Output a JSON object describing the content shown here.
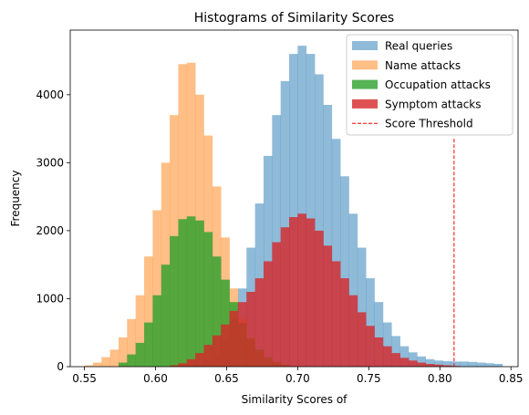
{
  "chart_data": {
    "type": "histogram",
    "title": "Histograms of Similarity Scores",
    "xlabel": "Similarity Scores of",
    "ylabel": "Frequency",
    "xlim": [
      0.54,
      0.855
    ],
    "ylim": [
      0,
      4950
    ],
    "xticks": [
      0.55,
      0.6,
      0.65,
      0.7,
      0.75,
      0.8,
      0.85
    ],
    "xtick_labels": [
      "0.55",
      "0.60",
      "0.65",
      "0.70",
      "0.75",
      "0.80",
      "0.85"
    ],
    "yticks": [
      0,
      1000,
      2000,
      3000,
      4000
    ],
    "ytick_labels": [
      "0",
      "1000",
      "2000",
      "3000",
      "4000"
    ],
    "legend_position": "upper right",
    "grid": false,
    "series": [
      {
        "name": "Real queries",
        "color": "#1f77b4",
        "alpha": 0.5,
        "bins": [
          0.55,
          0.556,
          0.562,
          0.568,
          0.574,
          0.58,
          0.586,
          0.592,
          0.598,
          0.604,
          0.61,
          0.616,
          0.622,
          0.628,
          0.634,
          0.64,
          0.646,
          0.652,
          0.658,
          0.664,
          0.67,
          0.676,
          0.682,
          0.688,
          0.694,
          0.7,
          0.706,
          0.712,
          0.718,
          0.724,
          0.73,
          0.736,
          0.742,
          0.748,
          0.754,
          0.76,
          0.766,
          0.772,
          0.778,
          0.784,
          0.79,
          0.796,
          0.802,
          0.808,
          0.814,
          0.82,
          0.826,
          0.832,
          0.838,
          0.844
        ],
        "counts": [
          0,
          0,
          0,
          0,
          0,
          0,
          0,
          0,
          0,
          0,
          2,
          6,
          15,
          40,
          90,
          190,
          380,
          700,
          1150,
          1750,
          2400,
          3100,
          3700,
          4200,
          4600,
          4720,
          4600,
          4300,
          3850,
          3350,
          2800,
          2250,
          1750,
          1300,
          950,
          650,
          450,
          300,
          210,
          150,
          110,
          90,
          80,
          75,
          75,
          70,
          60,
          50,
          40,
          0
        ]
      },
      {
        "name": "Name attacks",
        "color": "#ff7f0e",
        "alpha": 0.5,
        "bins": [
          0.55,
          0.556,
          0.562,
          0.568,
          0.574,
          0.58,
          0.586,
          0.592,
          0.598,
          0.604,
          0.61,
          0.616,
          0.622,
          0.628,
          0.634,
          0.64,
          0.646,
          0.652,
          0.658,
          0.664,
          0.67,
          0.676,
          0.682,
          0.688,
          0.694
        ],
        "counts": [
          20,
          60,
          140,
          250,
          430,
          700,
          1050,
          1620,
          2300,
          3000,
          3700,
          4450,
          4470,
          4000,
          3400,
          2650,
          1900,
          1150,
          700,
          420,
          220,
          110,
          50,
          20,
          0
        ]
      },
      {
        "name": "Occupation attacks",
        "color": "#2ca02c",
        "alpha": 0.8,
        "bins": [
          0.574,
          0.58,
          0.586,
          0.592,
          0.598,
          0.604,
          0.61,
          0.616,
          0.622,
          0.628,
          0.634,
          0.64,
          0.646,
          0.652,
          0.658,
          0.664,
          0.67,
          0.676,
          0.682,
          0.688,
          0.694
        ],
        "counts": [
          60,
          180,
          350,
          650,
          1050,
          1500,
          1920,
          2170,
          2210,
          2150,
          1980,
          1620,
          1280,
          950,
          640,
          420,
          250,
          140,
          70,
          30,
          0
        ]
      },
      {
        "name": "Symptom attacks",
        "color": "#d62728",
        "alpha": 0.8,
        "bins": [
          0.61,
          0.616,
          0.622,
          0.628,
          0.634,
          0.64,
          0.646,
          0.652,
          0.658,
          0.664,
          0.67,
          0.676,
          0.682,
          0.688,
          0.694,
          0.7,
          0.706,
          0.712,
          0.718,
          0.724,
          0.73,
          0.736,
          0.742,
          0.748,
          0.754,
          0.76,
          0.766,
          0.772,
          0.778,
          0.784,
          0.79,
          0.796,
          0.802,
          0.808,
          0.814
        ],
        "counts": [
          20,
          50,
          110,
          200,
          320,
          460,
          620,
          820,
          950,
          1100,
          1300,
          1550,
          1830,
          2050,
          2200,
          2250,
          2180,
          2000,
          1780,
          1550,
          1300,
          1050,
          800,
          600,
          430,
          300,
          200,
          130,
          90,
          60,
          40,
          30,
          20,
          10,
          0
        ]
      }
    ],
    "threshold": {
      "name": "Score Threshold",
      "x": 0.81,
      "color": "#ff0000",
      "style": "dashed"
    }
  }
}
